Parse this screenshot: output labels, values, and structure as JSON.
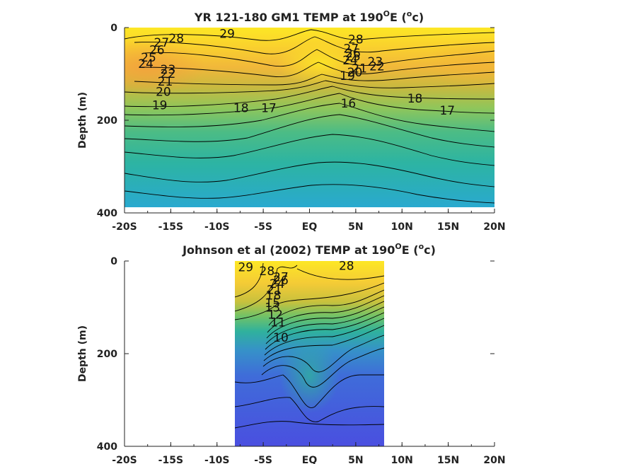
{
  "chart_data": [
    {
      "type": "heatmap",
      "subtype": "filled-contour",
      "title": "YR 121-180 GM1 TEMP at 190",
      "title_sup": "O",
      "title_mid": "E (",
      "title_sup2": "o",
      "title_end": "c)",
      "ylabel": "Depth (m)",
      "xlim": [
        -20,
        20
      ],
      "ylim": [
        0,
        400
      ],
      "y_reversed": true,
      "x_ticks": [
        -20,
        -15,
        -10,
        -5,
        0,
        5,
        10,
        15,
        20
      ],
      "x_tick_labels": [
        "-20S",
        "-15S",
        "-10S",
        "-5S",
        "EQ",
        "5N",
        "10N",
        "15N",
        "20N"
      ],
      "y_ticks": [
        0,
        200,
        400
      ],
      "y_tick_labels": [
        "0",
        "200",
        "400"
      ],
      "data_extent": {
        "x": [
          -20,
          20
        ],
        "y": [
          0,
          388
        ]
      },
      "colormap": [
        "#fde725",
        "#f5c330",
        "#cfc13a",
        "#8ec65b",
        "#4dbb84",
        "#2bb0a7",
        "#29a9cf"
      ],
      "contour_labels": [
        {
          "text": "29",
          "x": -8.9,
          "y": 13
        },
        {
          "text": "28",
          "x": -14.4,
          "y": 23
        },
        {
          "text": "28",
          "x": 5.0,
          "y": 25
        },
        {
          "text": "27",
          "x": -16.0,
          "y": 32
        },
        {
          "text": "26",
          "x": -16.5,
          "y": 48
        },
        {
          "text": "27",
          "x": 4.5,
          "y": 45
        },
        {
          "text": "26",
          "x": 4.7,
          "y": 55
        },
        {
          "text": "25",
          "x": -17.4,
          "y": 64
        },
        {
          "text": "25",
          "x": 4.7,
          "y": 62
        },
        {
          "text": "24",
          "x": -17.7,
          "y": 78
        },
        {
          "text": "24",
          "x": 4.4,
          "y": 70
        },
        {
          "text": "23",
          "x": 7.1,
          "y": 73
        },
        {
          "text": "22",
          "x": 7.3,
          "y": 83
        },
        {
          "text": "23",
          "x": -15.3,
          "y": 90
        },
        {
          "text": "21",
          "x": 5.4,
          "y": 88
        },
        {
          "text": "20",
          "x": 4.9,
          "y": 96
        },
        {
          "text": "22",
          "x": -15.3,
          "y": 99
        },
        {
          "text": "19",
          "x": 4.1,
          "y": 104
        },
        {
          "text": "21",
          "x": -15.6,
          "y": 116
        },
        {
          "text": "20",
          "x": -15.8,
          "y": 138
        },
        {
          "text": "18",
          "x": 11.4,
          "y": 153
        },
        {
          "text": "19",
          "x": -16.2,
          "y": 167
        },
        {
          "text": "16",
          "x": 4.2,
          "y": 163
        },
        {
          "text": "18",
          "x": -7.4,
          "y": 173
        },
        {
          "text": "17",
          "x": -4.4,
          "y": 173
        },
        {
          "text": "17",
          "x": 14.9,
          "y": 179
        }
      ]
    },
    {
      "type": "heatmap",
      "subtype": "filled-contour",
      "title": "Johnson et al (2002) TEMP at 190",
      "title_sup": "O",
      "title_mid": "E (",
      "title_sup2": "o",
      "title_end": "c)",
      "ylabel": "Depth (m)",
      "xlim": [
        -20,
        20
      ],
      "ylim": [
        0,
        400
      ],
      "y_reversed": true,
      "x_ticks": [
        -20,
        -15,
        -10,
        -5,
        0,
        5,
        10,
        15,
        20
      ],
      "x_tick_labels": [
        "-20S",
        "-15S",
        "-10S",
        "-5S",
        "EQ",
        "5N",
        "10N",
        "15N",
        "20N"
      ],
      "y_ticks": [
        0,
        200,
        400
      ],
      "y_tick_labels": [
        "0",
        "200",
        "400"
      ],
      "data_extent": {
        "x": [
          -8,
          8
        ],
        "y": [
          0,
          400
        ]
      },
      "colormap": [
        "#fde725",
        "#f2c73a",
        "#cfc13a",
        "#78c262",
        "#35b39a",
        "#3798c5",
        "#3d6fd7",
        "#4a4fe0"
      ],
      "contour_labels": [
        {
          "text": "29",
          "x": -6.9,
          "y": 13
        },
        {
          "text": "28",
          "x": -4.6,
          "y": 21
        },
        {
          "text": "28",
          "x": 4.0,
          "y": 10
        },
        {
          "text": "27",
          "x": -3.1,
          "y": 34
        },
        {
          "text": "26",
          "x": -3.1,
          "y": 41
        },
        {
          "text": "24",
          "x": -3.5,
          "y": 49
        },
        {
          "text": "21",
          "x": -3.8,
          "y": 62
        },
        {
          "text": "18",
          "x": -3.9,
          "y": 74
        },
        {
          "text": "15",
          "x": -4.0,
          "y": 90
        },
        {
          "text": "13",
          "x": -4.0,
          "y": 100
        },
        {
          "text": "12",
          "x": -3.7,
          "y": 115
        },
        {
          "text": "11",
          "x": -3.4,
          "y": 132
        },
        {
          "text": "10",
          "x": -3.1,
          "y": 165
        }
      ]
    }
  ]
}
